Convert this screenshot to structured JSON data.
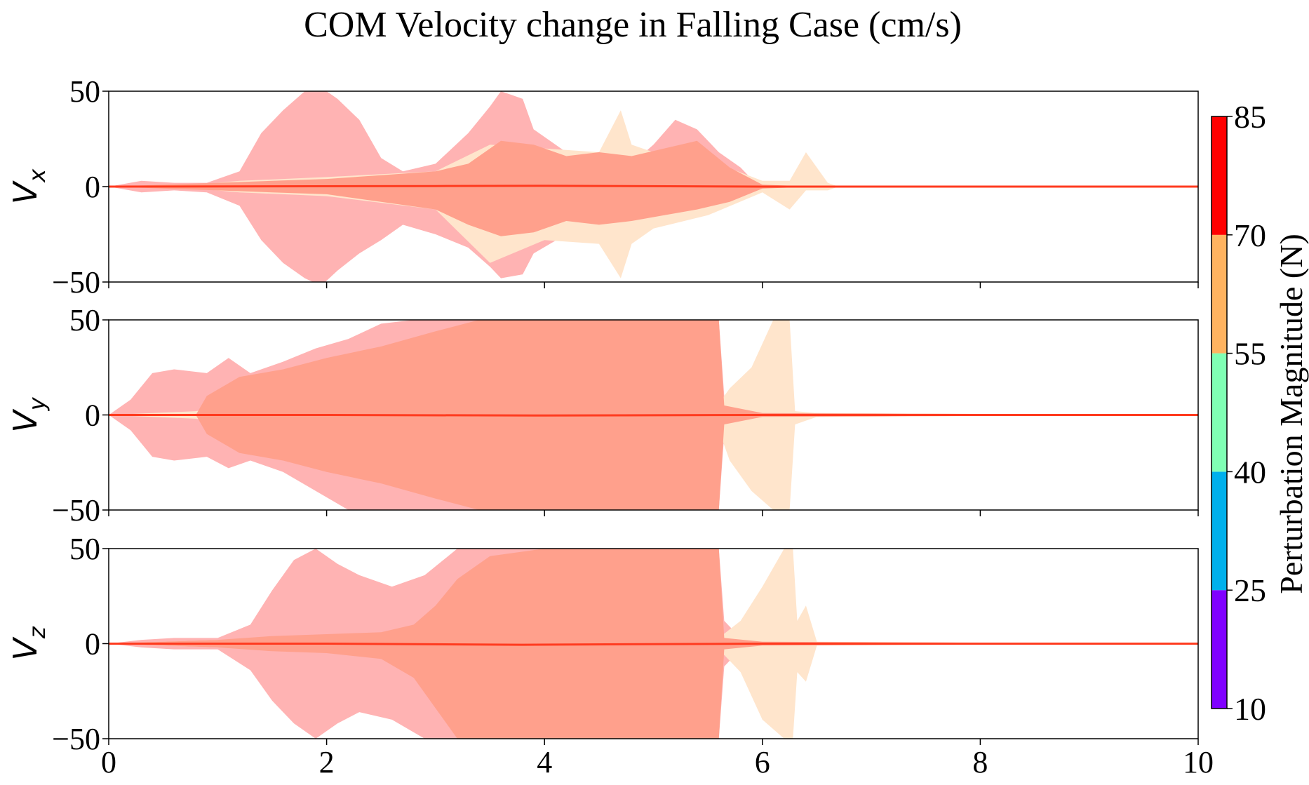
{
  "chart_data": {
    "type": "area",
    "title": "COM Velocity change in Falling Case (cm/s)",
    "xlim": [
      0,
      10
    ],
    "x_ticks": [
      "0",
      "2",
      "4",
      "6",
      "8",
      "10"
    ],
    "ylim": [
      -50,
      50
    ],
    "y_ticks": [
      "−50",
      "0",
      "50"
    ],
    "grid": false,
    "subplots": [
      {
        "ylabel_main": "V",
        "ylabel_sub": "x",
        "series": [
          {
            "color": "#ffb3b3",
            "x": [
              0,
              0.3,
              0.6,
              0.9,
              1.2,
              1.4,
              1.6,
              1.8,
              1.95,
              2.1,
              2.3,
              2.5,
              2.7,
              3.0,
              3.3,
              3.5,
              3.6,
              3.8,
              3.9,
              4.2,
              4.5,
              4.8,
              5.0,
              5.2,
              5.4,
              5.6,
              5.8,
              5.9,
              6.0,
              6.2,
              10
            ],
            "upper": [
              0,
              3,
              2,
              2,
              8,
              28,
              40,
              50,
              52,
              46,
              35,
              15,
              8,
              12,
              28,
              42,
              50,
              46,
              30,
              18,
              14,
              12,
              22,
              35,
              30,
              18,
              10,
              4,
              1,
              0,
              0
            ],
            "lower": [
              0,
              -3,
              -2,
              -3,
              -10,
              -28,
              -40,
              -48,
              -52,
              -44,
              -35,
              -28,
              -20,
              -25,
              -32,
              -42,
              -48,
              -46,
              -35,
              -25,
              -22,
              -26,
              -20,
              -16,
              -14,
              -10,
              -5,
              -2,
              -1,
              0,
              0
            ]
          },
          {
            "color": "#ffe5cc",
            "x": [
              0,
              0.8,
              1.2,
              2.0,
              3.0,
              3.5,
              4.0,
              4.5,
              4.7,
              4.8,
              5.0,
              5.5,
              6.0,
              6.25,
              6.4,
              6.6,
              6.7,
              10
            ],
            "upper": [
              0,
              1,
              3,
              5,
              8,
              22,
              20,
              18,
              40,
              22,
              18,
              14,
              3,
              3,
              18,
              2,
              0,
              0
            ],
            "lower": [
              0,
              -1,
              -3,
              -5,
              -12,
              -40,
              -28,
              -30,
              -48,
              -30,
              -22,
              -15,
              -3,
              -12,
              -2,
              -2,
              0,
              0
            ]
          },
          {
            "color": "#ffa08c",
            "x": [
              0,
              0.5,
              1.0,
              1.5,
              2.0,
              2.5,
              3.0,
              3.3,
              3.6,
              3.9,
              4.2,
              4.5,
              4.8,
              5.1,
              5.4,
              5.7,
              6.0,
              6.5,
              10
            ],
            "upper": [
              0,
              1,
              2,
              3,
              4,
              6,
              8,
              12,
              24,
              22,
              16,
              18,
              16,
              20,
              24,
              10,
              1,
              0,
              0
            ],
            "lower": [
              0,
              -1,
              -2,
              -3,
              -4,
              -8,
              -12,
              -20,
              -26,
              -24,
              -18,
              -20,
              -18,
              -15,
              -12,
              -8,
              -1,
              0,
              0
            ]
          }
        ],
        "mean_line": {
          "color": "#ff3b1f",
          "x": [
            0,
            3,
            4,
            6,
            10
          ],
          "y": [
            0,
            0.3,
            0.4,
            0,
            0
          ]
        }
      },
      {
        "ylabel_main": "V",
        "ylabel_sub": "y",
        "series": [
          {
            "color": "#ffb3b3",
            "x": [
              0,
              0.2,
              0.4,
              0.6,
              0.9,
              1.1,
              1.3,
              1.6,
              1.9,
              2.2,
              2.5,
              2.8,
              3.1,
              3.4,
              3.7,
              4.0,
              4.5,
              5.0,
              5.4,
              5.55,
              5.6,
              5.65,
              5.9,
              6.5,
              10
            ],
            "upper": [
              0,
              8,
              22,
              24,
              22,
              30,
              22,
              28,
              35,
              40,
              48,
              50,
              50,
              50,
              50,
              50,
              50,
              50,
              50,
              50,
              50,
              10,
              2,
              1,
              0
            ],
            "lower": [
              0,
              -8,
              -22,
              -24,
              -22,
              -28,
              -24,
              -30,
              -40,
              -50,
              -50,
              -50,
              -50,
              -50,
              -50,
              -50,
              -50,
              -50,
              -50,
              -50,
              -50,
              -10,
              -2,
              -1,
              0
            ]
          },
          {
            "color": "#ffe5cc",
            "x": [
              0,
              0.8,
              1.5,
              2.5,
              5.6,
              5.7,
              5.9,
              6.1,
              6.25,
              6.3,
              6.5,
              10
            ],
            "upper": [
              0,
              2,
              10,
              22,
              6,
              14,
              25,
              50,
              50,
              2,
              1,
              0
            ],
            "lower": [
              0,
              -2,
              -10,
              -25,
              -8,
              -24,
              -40,
              -50,
              -50,
              -5,
              -1,
              0
            ]
          },
          {
            "color": "#ffa08c",
            "x": [
              0,
              0.8,
              0.9,
              1.2,
              1.6,
              2.0,
              2.5,
              3.0,
              3.4,
              3.8,
              4.2,
              5.0,
              5.6,
              5.65,
              6.0,
              10
            ],
            "upper": [
              0,
              0,
              10,
              20,
              24,
              30,
              36,
              44,
              50,
              50,
              50,
              50,
              50,
              5,
              1,
              0
            ],
            "lower": [
              0,
              0,
              -10,
              -20,
              -24,
              -30,
              -36,
              -44,
              -50,
              -50,
              -50,
              -50,
              -50,
              -5,
              -1,
              0
            ]
          }
        ],
        "mean_line": {
          "color": "#ff3b1f",
          "x": [
            0,
            2,
            4,
            6,
            10
          ],
          "y": [
            0,
            0,
            -0.3,
            0,
            0
          ]
        }
      },
      {
        "ylabel_main": "V",
        "ylabel_sub": "z",
        "series": [
          {
            "color": "#ffb3b3",
            "x": [
              0,
              0.3,
              0.6,
              1.0,
              1.3,
              1.5,
              1.7,
              1.9,
              2.1,
              2.3,
              2.6,
              2.9,
              3.2,
              3.5,
              3.8,
              4.2,
              4.6,
              5.0,
              5.4,
              5.55,
              5.6,
              5.65,
              5.8,
              6.0,
              10
            ],
            "upper": [
              0,
              2,
              3,
              3,
              10,
              28,
              44,
              50,
              42,
              36,
              30,
              36,
              50,
              50,
              50,
              50,
              50,
              50,
              50,
              50,
              50,
              12,
              3,
              1,
              0
            ],
            "lower": [
              0,
              -2,
              -3,
              -3,
              -14,
              -30,
              -42,
              -50,
              -42,
              -36,
              -40,
              -50,
              -50,
              -50,
              -50,
              -50,
              -50,
              -50,
              -50,
              -50,
              -50,
              -12,
              -3,
              -1,
              0
            ]
          },
          {
            "color": "#ffe5cc",
            "x": [
              0,
              1.0,
              2.0,
              5.6,
              5.8,
              6.0,
              6.2,
              6.28,
              6.32,
              6.4,
              6.5,
              10
            ],
            "upper": [
              0,
              2,
              3,
              3,
              12,
              30,
              50,
              50,
              12,
              20,
              1,
              0
            ],
            "lower": [
              0,
              -2,
              -3,
              -3,
              -15,
              -40,
              -50,
              -50,
              -15,
              -20,
              -1,
              0
            ]
          },
          {
            "color": "#ffa08c",
            "x": [
              0,
              0.5,
              1.0,
              1.5,
              2.0,
              2.5,
              2.8,
              3.0,
              3.2,
              3.5,
              4.0,
              4.5,
              5.0,
              5.5,
              5.6,
              5.65,
              6.0,
              10
            ],
            "upper": [
              0,
              1,
              2,
              4,
              5,
              6,
              10,
              20,
              34,
              46,
              50,
              50,
              50,
              50,
              50,
              3,
              1,
              0
            ],
            "lower": [
              0,
              -1,
              -2,
              -4,
              -5,
              -8,
              -18,
              -34,
              -50,
              -50,
              -50,
              -50,
              -50,
              -50,
              -50,
              -3,
              -1,
              0
            ]
          }
        ],
        "mean_line": {
          "color": "#ff3b1f",
          "x": [
            0,
            2,
            3.8,
            6,
            10
          ],
          "y": [
            0,
            0,
            -0.6,
            0,
            0
          ]
        }
      }
    ],
    "colorbar": {
      "label": "Perturbation Magnitude (N)",
      "tick_labels": [
        "10",
        "25",
        "40",
        "55",
        "70",
        "85"
      ],
      "bins": [
        {
          "from": 10,
          "to": 25,
          "color": "#8000ff"
        },
        {
          "from": 25,
          "to": 40,
          "color": "#00b0ec"
        },
        {
          "from": 40,
          "to": 55,
          "color": "#80ffb4"
        },
        {
          "from": 55,
          "to": 70,
          "color": "#ffb360"
        },
        {
          "from": 70,
          "to": 85,
          "color": "#ff0000"
        }
      ]
    }
  }
}
